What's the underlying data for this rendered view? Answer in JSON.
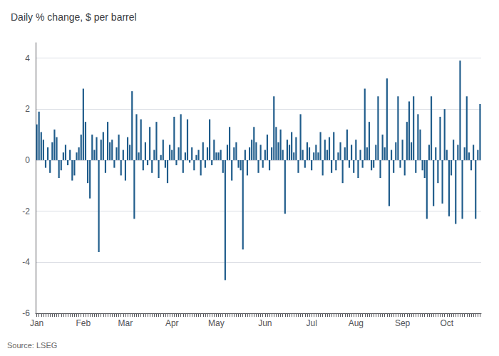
{
  "chart_data": {
    "type": "bar",
    "title": "Daily % change, $ per barrel",
    "source": "Source: LSEG",
    "color": "#1f5c8b",
    "ylim": [
      -6,
      4.6
    ],
    "yticks": [
      -6,
      -4,
      -2,
      0,
      2,
      4
    ],
    "grid": true,
    "categories": [
      "Jan",
      null,
      null,
      null,
      null,
      null,
      null,
      null,
      null,
      null,
      null,
      null,
      null,
      null,
      null,
      null,
      null,
      null,
      null,
      null,
      null,
      "Feb",
      null,
      null,
      null,
      null,
      null,
      null,
      null,
      null,
      null,
      null,
      null,
      null,
      null,
      null,
      null,
      null,
      null,
      null,
      "Mar",
      null,
      null,
      null,
      null,
      null,
      null,
      null,
      null,
      null,
      null,
      null,
      null,
      null,
      null,
      null,
      null,
      null,
      null,
      null,
      null,
      "Apr",
      null,
      null,
      null,
      null,
      null,
      null,
      null,
      null,
      null,
      null,
      null,
      null,
      null,
      null,
      null,
      null,
      null,
      null,
      null,
      "May",
      null,
      null,
      null,
      null,
      null,
      null,
      null,
      null,
      null,
      null,
      null,
      null,
      null,
      null,
      null,
      null,
      null,
      null,
      null,
      null,
      null,
      "Jun",
      null,
      null,
      null,
      null,
      null,
      null,
      null,
      null,
      null,
      null,
      null,
      null,
      null,
      null,
      null,
      null,
      null,
      null,
      null,
      null,
      "Jul",
      null,
      null,
      null,
      null,
      null,
      null,
      null,
      null,
      null,
      null,
      null,
      null,
      null,
      null,
      null,
      null,
      null,
      null,
      null,
      "Aug",
      null,
      null,
      null,
      null,
      null,
      null,
      null,
      null,
      null,
      null,
      null,
      null,
      null,
      null,
      null,
      null,
      null,
      null,
      null,
      null,
      "Sep",
      null,
      null,
      null,
      null,
      null,
      null,
      null,
      null,
      null,
      null,
      null,
      null,
      null,
      null,
      null,
      null,
      null,
      null,
      null,
      "Oct",
      null,
      null,
      null,
      null,
      null,
      null,
      null,
      null,
      null,
      null,
      null,
      null,
      null,
      null,
      null
    ],
    "values": [
      1.4,
      1.9,
      1.1,
      0.8,
      -0.3,
      0.5,
      -0.5,
      0.7,
      1.2,
      0.9,
      -0.7,
      -0.4,
      0.3,
      0.6,
      -0.2,
      0.4,
      -0.8,
      -0.6,
      0.3,
      0.5,
      1.0,
      2.8,
      1.5,
      -0.9,
      -1.5,
      1.0,
      0.4,
      0.9,
      -3.6,
      0.8,
      1.1,
      -0.5,
      1.5,
      0.7,
      0.8,
      -0.3,
      0.5,
      1.0,
      -0.6,
      0.4,
      -0.8,
      0.9,
      0.6,
      2.7,
      -2.3,
      1.8,
      0.3,
      1.6,
      -0.4,
      0.7,
      -0.2,
      1.3,
      -0.5,
      0.4,
      1.5,
      -0.7,
      0.2,
      0.8,
      -0.3,
      -0.9,
      0.6,
      0.4,
      1.7,
      -0.2,
      0.5,
      1.8,
      -0.5,
      0.3,
      1.6,
      -0.1,
      0.5,
      -0.4,
      0.2,
      0.4,
      -0.6,
      0.7,
      -0.3,
      0.5,
      1.6,
      -0.2,
      0.8,
      0.3,
      0.3,
      0.4,
      -0.5,
      -4.7,
      0.6,
      1.3,
      -0.8,
      0.5,
      0.7,
      -0.3,
      -0.4,
      -3.5,
      0.4,
      -0.6,
      0.5,
      0.8,
      1.3,
      0.7,
      -0.5,
      0.6,
      -0.3,
      0.4,
      1.0,
      -0.4,
      0.5,
      2.5,
      1.3,
      0.7,
      1.2,
      0.4,
      -2.1,
      0.8,
      0.6,
      1.1,
      0.3,
      0.9,
      -0.5,
      1.8,
      0.4,
      -0.3,
      0.7,
      0.5,
      -0.4,
      0.3,
      0.6,
      0.3,
      1.1,
      -0.6,
      0.8,
      0.4,
      0.9,
      -0.5,
      1.1,
      -0.4,
      0.3,
      0.7,
      -0.9,
      0.5,
      1.2,
      -0.3,
      0.6,
      -0.5,
      0.8,
      -0.7,
      0.4,
      -0.3,
      2.8,
      0.5,
      1.5,
      -0.4,
      -0.3,
      0.6,
      2.5,
      -0.7,
      1.0,
      0.5,
      3.2,
      -1.8,
      0.4,
      -0.5,
      0.7,
      2.5,
      -0.3,
      0.8,
      -0.6,
      1.5,
      2.3,
      0.7,
      2.5,
      -0.5,
      1.8,
      1.2,
      -0.4,
      -0.7,
      -2.3,
      0.6,
      2.5,
      -1.8,
      0.5,
      -0.9,
      1.7,
      -1.7,
      2.0,
      0.4,
      -2.2,
      -0.6,
      0.8,
      -2.5,
      0.6,
      3.9,
      -2.3,
      0.5,
      2.5,
      0.3,
      -0.4,
      0.6,
      -2.3,
      0.4,
      2.2
    ]
  }
}
